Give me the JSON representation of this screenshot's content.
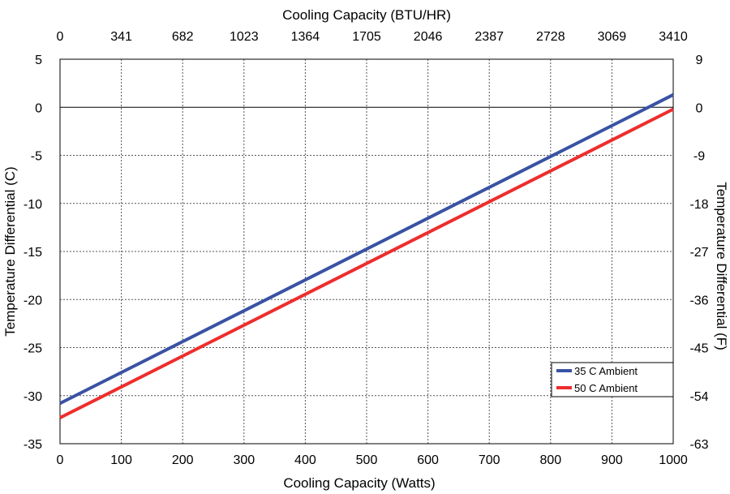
{
  "chart_data": {
    "type": "line",
    "x_axis": {
      "label": "Cooling Capacity (Watts)",
      "range": [
        0,
        1000
      ],
      "ticks": [
        0,
        100,
        200,
        300,
        400,
        500,
        600,
        700,
        800,
        900,
        1000
      ]
    },
    "x2_axis": {
      "label": "Cooling Capacity (BTU/HR)",
      "range": [
        0,
        3410
      ],
      "ticks": [
        0,
        341,
        682,
        1023,
        1364,
        1705,
        2046,
        2387,
        2728,
        3069,
        3410
      ]
    },
    "y_axis": {
      "label": "Temperature Differential (C)",
      "range": [
        -35,
        5
      ],
      "ticks": [
        5,
        0,
        -5,
        -10,
        -15,
        -20,
        -25,
        -30,
        -35
      ]
    },
    "y2_axis": {
      "label": "Temperature Differential (F)",
      "range": [
        -63,
        9
      ],
      "ticks": [
        9,
        0,
        -9,
        -18,
        -27,
        -36,
        -45,
        -54,
        -63
      ]
    },
    "grid": true,
    "legend_position": "bottom-right",
    "series": [
      {
        "name": "35 C Ambient",
        "color": "#3952a4",
        "x": [
          0,
          1000
        ],
        "y": [
          -30.8,
          1.3
        ]
      },
      {
        "name": "50 C Ambient",
        "color": "#ee2d2d",
        "x": [
          0,
          1000
        ],
        "y": [
          -32.3,
          -0.2
        ]
      }
    ]
  }
}
